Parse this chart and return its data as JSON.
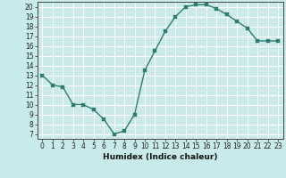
{
  "x": [
    0,
    1,
    2,
    3,
    4,
    5,
    6,
    7,
    8,
    9,
    10,
    11,
    12,
    13,
    14,
    15,
    16,
    17,
    18,
    19,
    20,
    21,
    22,
    23
  ],
  "y": [
    13,
    12,
    11.8,
    10,
    10,
    9.5,
    8.5,
    7,
    7.3,
    9,
    13.5,
    15.5,
    17.5,
    19,
    20,
    20.2,
    20.2,
    19.8,
    19.2,
    18.5,
    17.8,
    16.5,
    16.5,
    16.5
  ],
  "line_color": "#2e7d6e",
  "marker_color": "#2e7d6e",
  "bg_color": "#c8eaea",
  "grid_major_color": "#ffffff",
  "grid_minor_color": "#dde8e8",
  "xlabel": "Humidex (Indice chaleur)",
  "xlim": [
    -0.5,
    23.5
  ],
  "ylim": [
    6.5,
    20.5
  ],
  "yticks": [
    7,
    8,
    9,
    10,
    11,
    12,
    13,
    14,
    15,
    16,
    17,
    18,
    19,
    20
  ],
  "xticks": [
    0,
    1,
    2,
    3,
    4,
    5,
    6,
    7,
    8,
    9,
    10,
    11,
    12,
    13,
    14,
    15,
    16,
    17,
    18,
    19,
    20,
    21,
    22,
    23
  ],
  "tick_fontsize": 5.5,
  "xlabel_fontsize": 6.5
}
